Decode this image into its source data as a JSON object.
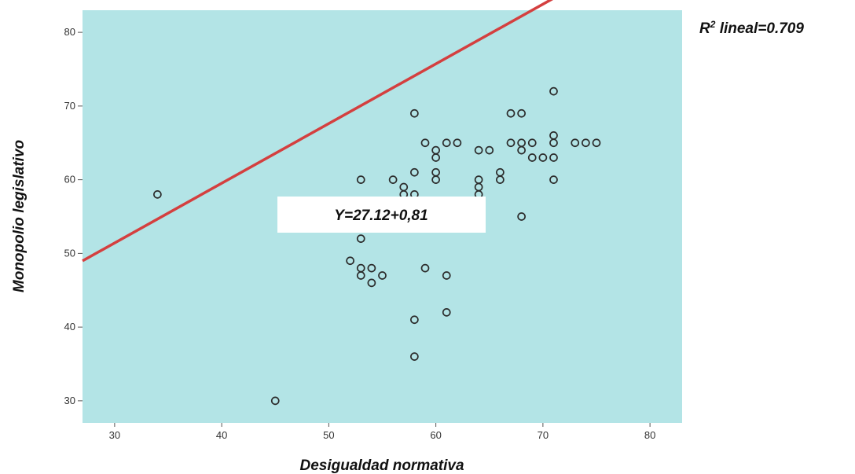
{
  "chart_data": {
    "type": "scatter",
    "xlabel": "Desigualdad normativa",
    "ylabel": "Monopolio legislativo",
    "xlim": [
      27,
      83
    ],
    "ylim": [
      27,
      83
    ],
    "xticks": [
      "30",
      "40",
      "50",
      "60",
      "70",
      "80"
    ],
    "yticks": [
      "30",
      "40",
      "50",
      "60",
      "70",
      "80"
    ],
    "grid": false,
    "background_color": "#b3e4e6",
    "marker_color": "#2b2b2b",
    "fit_line": {
      "intercept": 27.12,
      "slope": 0.81,
      "color": "#d43f3f",
      "label": "Y=27.12+0,81"
    },
    "r2_label": {
      "prefix": "R",
      "superscript": "2",
      "text": " lineal=0.709"
    },
    "points": [
      {
        "x": 34,
        "y": 58
      },
      {
        "x": 45,
        "y": 30
      },
      {
        "x": 52,
        "y": 49
      },
      {
        "x": 53,
        "y": 60
      },
      {
        "x": 53,
        "y": 52
      },
      {
        "x": 53,
        "y": 48
      },
      {
        "x": 53,
        "y": 47
      },
      {
        "x": 54,
        "y": 48
      },
      {
        "x": 54,
        "y": 46
      },
      {
        "x": 55,
        "y": 47
      },
      {
        "x": 56,
        "y": 60
      },
      {
        "x": 57,
        "y": 59
      },
      {
        "x": 57,
        "y": 58
      },
      {
        "x": 58,
        "y": 69
      },
      {
        "x": 58,
        "y": 61
      },
      {
        "x": 58,
        "y": 58
      },
      {
        "x": 58,
        "y": 41
      },
      {
        "x": 58,
        "y": 36
      },
      {
        "x": 59,
        "y": 65
      },
      {
        "x": 59,
        "y": 48
      },
      {
        "x": 60,
        "y": 64
      },
      {
        "x": 60,
        "y": 63
      },
      {
        "x": 60,
        "y": 61
      },
      {
        "x": 60,
        "y": 60
      },
      {
        "x": 61,
        "y": 65
      },
      {
        "x": 61,
        "y": 47
      },
      {
        "x": 61,
        "y": 42
      },
      {
        "x": 62,
        "y": 65
      },
      {
        "x": 64,
        "y": 64
      },
      {
        "x": 64,
        "y": 60
      },
      {
        "x": 64,
        "y": 59
      },
      {
        "x": 64,
        "y": 58
      },
      {
        "x": 65,
        "y": 64
      },
      {
        "x": 66,
        "y": 61
      },
      {
        "x": 66,
        "y": 60
      },
      {
        "x": 67,
        "y": 69
      },
      {
        "x": 67,
        "y": 65
      },
      {
        "x": 68,
        "y": 69
      },
      {
        "x": 68,
        "y": 65
      },
      {
        "x": 68,
        "y": 64
      },
      {
        "x": 68,
        "y": 55
      },
      {
        "x": 69,
        "y": 65
      },
      {
        "x": 69,
        "y": 63
      },
      {
        "x": 70,
        "y": 63
      },
      {
        "x": 71,
        "y": 72
      },
      {
        "x": 71,
        "y": 66
      },
      {
        "x": 71,
        "y": 65
      },
      {
        "x": 71,
        "y": 63
      },
      {
        "x": 71,
        "y": 60
      },
      {
        "x": 73,
        "y": 65
      },
      {
        "x": 74,
        "y": 65
      },
      {
        "x": 75,
        "y": 65
      }
    ]
  }
}
